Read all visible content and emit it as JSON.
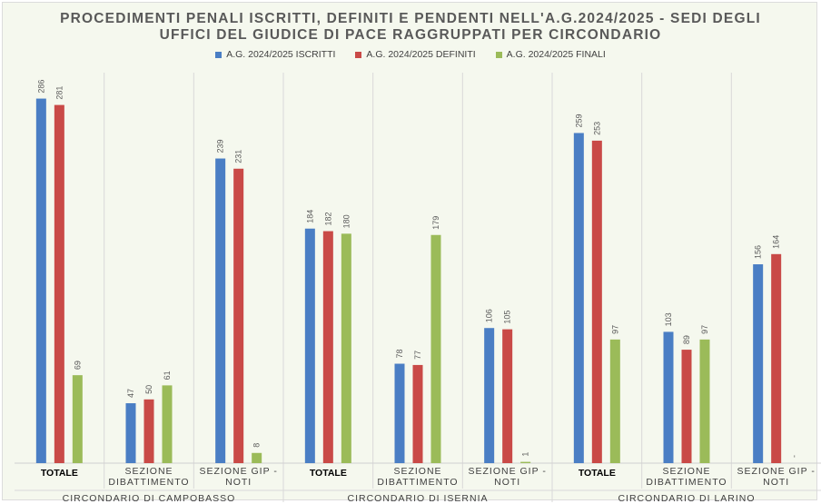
{
  "chart_data": {
    "type": "bar",
    "title_lines": [
      "PROCEDIMENTI PENALI ISCRITTI, DEFINITI E PENDENTI NELL'A.G.2024/2025 - SEDI DEGLI",
      "UFFICI DEL GIUDICE DI PACE RAGGRUPPATI PER CIRCONDARIO"
    ],
    "groups": [
      "CIRCONDARIO DI CAMPOBASSO",
      "CIRCONDARIO DI ISERNIA",
      "CIRCONDARIO DI LARINO"
    ],
    "categories": [
      {
        "group": 0,
        "lines": [
          "TOTALE"
        ],
        "bold": true
      },
      {
        "group": 0,
        "lines": [
          "SEZIONE",
          "DIBATTIMENTO"
        ],
        "bold": false
      },
      {
        "group": 0,
        "lines": [
          "SEZIONE GIP -",
          "NOTI"
        ],
        "bold": false
      },
      {
        "group": 1,
        "lines": [
          "TOTALE"
        ],
        "bold": true
      },
      {
        "group": 1,
        "lines": [
          "SEZIONE",
          "DIBATTIMENTO"
        ],
        "bold": false
      },
      {
        "group": 1,
        "lines": [
          "SEZIONE GIP -",
          "NOTI"
        ],
        "bold": false
      },
      {
        "group": 2,
        "lines": [
          "TOTALE"
        ],
        "bold": true
      },
      {
        "group": 2,
        "lines": [
          "SEZIONE",
          "DIBATTIMENTO"
        ],
        "bold": false
      },
      {
        "group": 2,
        "lines": [
          "SEZIONE GIP -",
          "NOTI"
        ],
        "bold": false
      }
    ],
    "series": [
      {
        "name": "A.G. 2024/2025 ISCRITTI",
        "color": "#4a7ec4",
        "values": [
          286,
          47,
          239,
          184,
          78,
          106,
          259,
          103,
          156
        ],
        "labels": [
          "286",
          "47",
          "239",
          "184",
          "78",
          "106",
          "259",
          "103",
          "156"
        ]
      },
      {
        "name": "A.G. 2024/2025 DEFINITI",
        "color": "#c94a47",
        "values": [
          281,
          50,
          231,
          182,
          77,
          105,
          253,
          89,
          164
        ],
        "labels": [
          "281",
          "50",
          "231",
          "182",
          "77",
          "105",
          "253",
          "89",
          "164"
        ]
      },
      {
        "name": "A.G. 2024/2025 FINALI",
        "color": "#9bbb59",
        "values": [
          69,
          61,
          8,
          180,
          179,
          1,
          97,
          97,
          0
        ],
        "labels": [
          "69",
          "61",
          "8",
          "180",
          "179",
          "1",
          "97",
          "97",
          "-"
        ]
      }
    ],
    "ylim": [
      0,
      300
    ],
    "grid": false,
    "legend_position": "top-center"
  }
}
